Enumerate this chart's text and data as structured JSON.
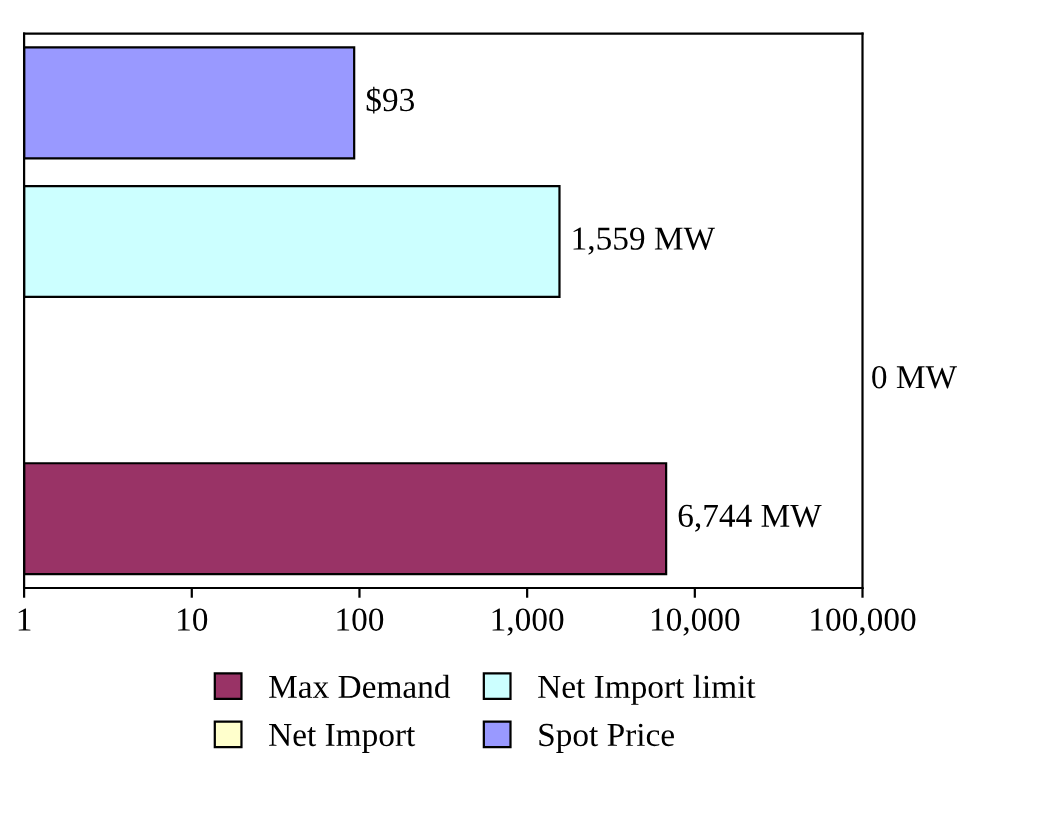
{
  "chart_data": {
    "type": "bar",
    "orientation": "horizontal",
    "log": "x",
    "categories": [
      null,
      null,
      null,
      null
    ],
    "series": [
      {
        "name": "Max Demand",
        "color": "#993366",
        "values": [
          null,
          null,
          null,
          6744
        ],
        "value_labels": [
          null,
          null,
          null,
          "6,744 MW"
        ]
      },
      {
        "name": "Net Import",
        "color": "#ffffcc",
        "values": [
          null,
          null,
          null,
          null
        ]
      },
      {
        "name": "Net Import limit",
        "color": "#ccffff",
        "values": [
          null,
          1559,
          null,
          null
        ],
        "value_labels": [
          null,
          "1,559 MW",
          null,
          null
        ]
      },
      {
        "name": "Spot Price",
        "color": "#9999ff",
        "values": [
          93,
          null,
          null,
          null
        ],
        "value_labels": [
          "$93",
          null,
          null,
          null
        ]
      }
    ],
    "xlim": [
      1,
      100000
    ],
    "xticks": [
      1,
      10,
      100,
      {
        "value": 1000,
        "label": "1,000"
      },
      {
        "value": 10000,
        "label": "10,000"
      },
      {
        "value": 100000,
        "label": "100,000"
      }
    ],
    "grid": false,
    "legend": "bottom",
    "annotations": [
      "0 MW"
    ]
  }
}
